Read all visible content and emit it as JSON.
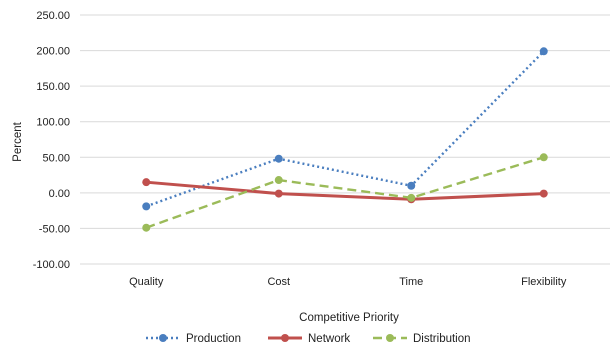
{
  "chart_data": {
    "type": "line",
    "title": "",
    "xlabel": "Competitive Priority",
    "ylabel": "Percent",
    "categories": [
      "Quality",
      "Cost",
      "Time",
      "Flexibility"
    ],
    "y_ticks": [
      "250.00",
      "200.00",
      "150.00",
      "100.00",
      "50.00",
      "0.00",
      "-50.00",
      "-100.00"
    ],
    "ylim": [
      -100,
      250
    ],
    "grid": true,
    "legend_position": "bottom",
    "series": [
      {
        "name": "Production",
        "values": [
          -19,
          48,
          10,
          199
        ],
        "color": "#4a7ebf",
        "style": "dotted"
      },
      {
        "name": "Network",
        "values": [
          15,
          -1,
          -9,
          -1
        ],
        "color": "#c0504d",
        "style": "solid"
      },
      {
        "name": "Distribution",
        "values": [
          -49,
          18,
          -7,
          50
        ],
        "color": "#9bbb59",
        "style": "dashed"
      }
    ]
  }
}
